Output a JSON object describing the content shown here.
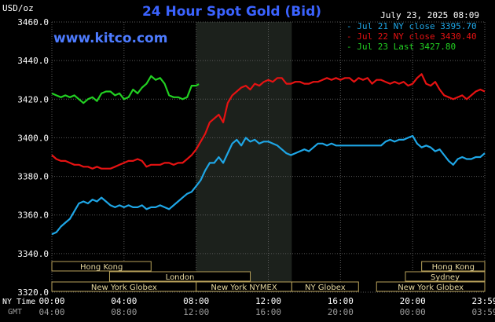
{
  "header": {
    "unit": "USD/oz",
    "title": "24 Hour Spot Gold (Bid)",
    "date": "July 23, 2025 08:09",
    "site": "www.kitco.com"
  },
  "colors": {
    "background": "#000000",
    "grid": "#5a5a5a",
    "axis_text": "#ffffff",
    "title": "#3b63ff",
    "site": "#4d7bff",
    "shade": "#1c211c",
    "session_fill": "#000000",
    "session_border": "#b7a15a",
    "session_text": "#e8d9a0",
    "jul21": "#1ea6e6",
    "jul22": "#e61212",
    "jul23": "#22d022",
    "gmt_text": "#9a9a9a"
  },
  "chart_data": {
    "type": "line",
    "title": "24 Hour Spot Gold (Bid)",
    "ylabel": "USD/oz",
    "xlabel": "NY Time",
    "xlim": [
      0,
      24
    ],
    "ylim": [
      3320,
      3460
    ],
    "grid": true,
    "legend_position": "top-right",
    "y_ticks": [
      "3320.0",
      "3340.0",
      "3360.0",
      "3380.0",
      "3400.0",
      "3420.0",
      "3440.0",
      "3460.0"
    ],
    "x_ticks": [
      {
        "hour": 0,
        "ny": "00:00",
        "gmt": "04:00"
      },
      {
        "hour": 4,
        "ny": "04:00",
        "gmt": "08:00"
      },
      {
        "hour": 8,
        "ny": "08:00",
        "gmt": "12:00"
      },
      {
        "hour": 12,
        "ny": "12:00",
        "gmt": "16:00"
      },
      {
        "hour": 16,
        "ny": "16:00",
        "gmt": "20:00"
      },
      {
        "hour": 20,
        "ny": "20:00",
        "gmt": "00:00"
      },
      {
        "hour": 24,
        "ny": "23:59",
        "gmt": "03:59"
      }
    ],
    "x_axis_label_ny": "NY Time",
    "x_axis_label_gmt": "GMT",
    "shaded_range": [
      8.0,
      13.3
    ],
    "series": [
      {
        "name": "Jul 21 NY close 3395.70",
        "color_key": "jul21",
        "x": [
          0,
          0.25,
          0.5,
          0.75,
          1.0,
          1.25,
          1.5,
          1.75,
          2.0,
          2.25,
          2.5,
          2.75,
          3.0,
          3.25,
          3.5,
          3.75,
          4.0,
          4.25,
          4.5,
          4.75,
          5.0,
          5.25,
          5.5,
          5.75,
          6.0,
          6.25,
          6.5,
          6.75,
          7.0,
          7.25,
          7.5,
          7.75,
          8.0,
          8.25,
          8.5,
          8.75,
          9.0,
          9.25,
          9.5,
          9.75,
          10.0,
          10.25,
          10.5,
          10.75,
          11.0,
          11.25,
          11.5,
          11.75,
          12.0,
          12.25,
          12.5,
          12.75,
          13.0,
          13.25,
          13.5,
          13.75,
          14.0,
          14.25,
          14.5,
          14.75,
          15.0,
          15.25,
          15.5,
          15.75,
          16.0,
          16.25,
          16.5,
          16.75,
          17.0,
          17.25,
          17.5,
          17.75,
          18.0,
          18.25,
          18.5,
          18.75,
          19.0,
          19.25,
          19.5,
          19.75,
          20.0,
          20.25,
          20.5,
          20.75,
          21.0,
          21.25,
          21.5,
          21.75,
          22.0,
          22.25,
          22.5,
          22.75,
          23.0,
          23.25,
          23.5,
          23.75,
          24.0
        ],
        "values": [
          3350,
          3351,
          3354,
          3356,
          3358,
          3362,
          3366,
          3367,
          3366,
          3368,
          3367,
          3369,
          3367,
          3365,
          3364,
          3365,
          3364,
          3365,
          3364,
          3364,
          3365,
          3363,
          3364,
          3364,
          3365,
          3364,
          3363,
          3365,
          3367,
          3369,
          3371,
          3372,
          3375,
          3378,
          3383,
          3387,
          3387,
          3390,
          3387,
          3392,
          3397,
          3399,
          3396,
          3400,
          3398,
          3399,
          3397,
          3398,
          3398,
          3397,
          3396,
          3394,
          3392,
          3391,
          3392,
          3393,
          3394,
          3393,
          3395,
          3397,
          3397,
          3396,
          3397,
          3396,
          3396,
          3396,
          3396,
          3396,
          3396,
          3396,
          3396,
          3396,
          3396,
          3396,
          3398,
          3399,
          3398,
          3399,
          3399,
          3400,
          3401,
          3397,
          3395,
          3396,
          3395,
          3393,
          3394,
          3391,
          3388,
          3386,
          3389,
          3390,
          3389,
          3389,
          3390,
          3390,
          3392
        ]
      },
      {
        "name": "Jul 22 NY close 3430.40",
        "color_key": "jul22",
        "x": [
          0,
          0.25,
          0.5,
          0.75,
          1.0,
          1.25,
          1.5,
          1.75,
          2.0,
          2.25,
          2.5,
          2.75,
          3.0,
          3.25,
          3.5,
          3.75,
          4.0,
          4.25,
          4.5,
          4.75,
          5.0,
          5.25,
          5.5,
          5.75,
          6.0,
          6.25,
          6.5,
          6.75,
          7.0,
          7.25,
          7.5,
          7.75,
          8.0,
          8.25,
          8.5,
          8.75,
          9.0,
          9.25,
          9.5,
          9.75,
          10.0,
          10.25,
          10.5,
          10.75,
          11.0,
          11.25,
          11.5,
          11.75,
          12.0,
          12.25,
          12.5,
          12.75,
          13.0,
          13.25,
          13.5,
          13.75,
          14.0,
          14.25,
          14.5,
          14.75,
          15.0,
          15.25,
          15.5,
          15.75,
          16.0,
          16.25,
          16.5,
          16.75,
          17.0,
          17.25,
          17.5,
          17.75,
          18.0,
          18.25,
          18.5,
          18.75,
          19.0,
          19.25,
          19.5,
          19.75,
          20.0,
          20.25,
          20.5,
          20.75,
          21.0,
          21.25,
          21.5,
          21.75,
          22.0,
          22.25,
          22.5,
          22.75,
          23.0,
          23.25,
          23.5,
          23.75,
          24.0
        ],
        "values": [
          3391,
          3389,
          3388,
          3388,
          3387,
          3386,
          3386,
          3385,
          3385,
          3384,
          3385,
          3384,
          3384,
          3384,
          3385,
          3386,
          3387,
          3388,
          3388,
          3389,
          3388,
          3385,
          3386,
          3386,
          3386,
          3387,
          3387,
          3386,
          3387,
          3387,
          3389,
          3391,
          3394,
          3398,
          3402,
          3408,
          3410,
          3412,
          3408,
          3418,
          3422,
          3424,
          3426,
          3427,
          3425,
          3428,
          3427,
          3429,
          3430,
          3429,
          3431,
          3431,
          3428,
          3428,
          3429,
          3429,
          3428,
          3428,
          3429,
          3429,
          3430,
          3431,
          3430,
          3431,
          3430,
          3431,
          3431,
          3429,
          3431,
          3430,
          3431,
          3428,
          3430,
          3430,
          3429,
          3428,
          3429,
          3428,
          3429,
          3427,
          3428,
          3431,
          3433,
          3428,
          3427,
          3429,
          3425,
          3422,
          3421,
          3420,
          3421,
          3422,
          3420,
          3422,
          3424,
          3425,
          3424
        ]
      },
      {
        "name": "Jul 23 Last 3427.80",
        "color_key": "jul23",
        "x": [
          0,
          0.25,
          0.5,
          0.75,
          1.0,
          1.25,
          1.5,
          1.75,
          2.0,
          2.25,
          2.5,
          2.75,
          3.0,
          3.25,
          3.5,
          3.75,
          4.0,
          4.25,
          4.5,
          4.75,
          5.0,
          5.25,
          5.5,
          5.75,
          6.0,
          6.25,
          6.5,
          6.75,
          7.0,
          7.25,
          7.5,
          7.75,
          8.0,
          8.15
        ],
        "values": [
          3423,
          3422,
          3421,
          3422,
          3421,
          3422,
          3420,
          3418,
          3420,
          3421,
          3419,
          3423,
          3424,
          3424,
          3422,
          3423,
          3420,
          3421,
          3425,
          3423,
          3426,
          3428,
          3432,
          3430,
          3431,
          3428,
          3422,
          3421,
          3421,
          3420,
          3421,
          3427,
          3427,
          3427.8
        ]
      }
    ],
    "sessions": [
      {
        "label": "Hong Kong",
        "start": 0.0,
        "end": 5.5,
        "row": 0
      },
      {
        "label": "London",
        "start": 3.2,
        "end": 11.0,
        "row": 1
      },
      {
        "label": "New York Globex",
        "start": 0.0,
        "end": 8.0,
        "row": 2
      },
      {
        "label": "New York NYMEX",
        "start": 8.0,
        "end": 13.3,
        "row": 2
      },
      {
        "label": "NY Globex",
        "start": 13.3,
        "end": 17.0,
        "row": 2
      },
      {
        "label": "Hong Kong",
        "start": 20.5,
        "end": 24.0,
        "row": 0
      },
      {
        "label": "Sydney",
        "start": 19.6,
        "end": 24.0,
        "row": 1
      },
      {
        "label": "New York Globex",
        "start": 18.0,
        "end": 24.0,
        "row": 2
      }
    ]
  }
}
